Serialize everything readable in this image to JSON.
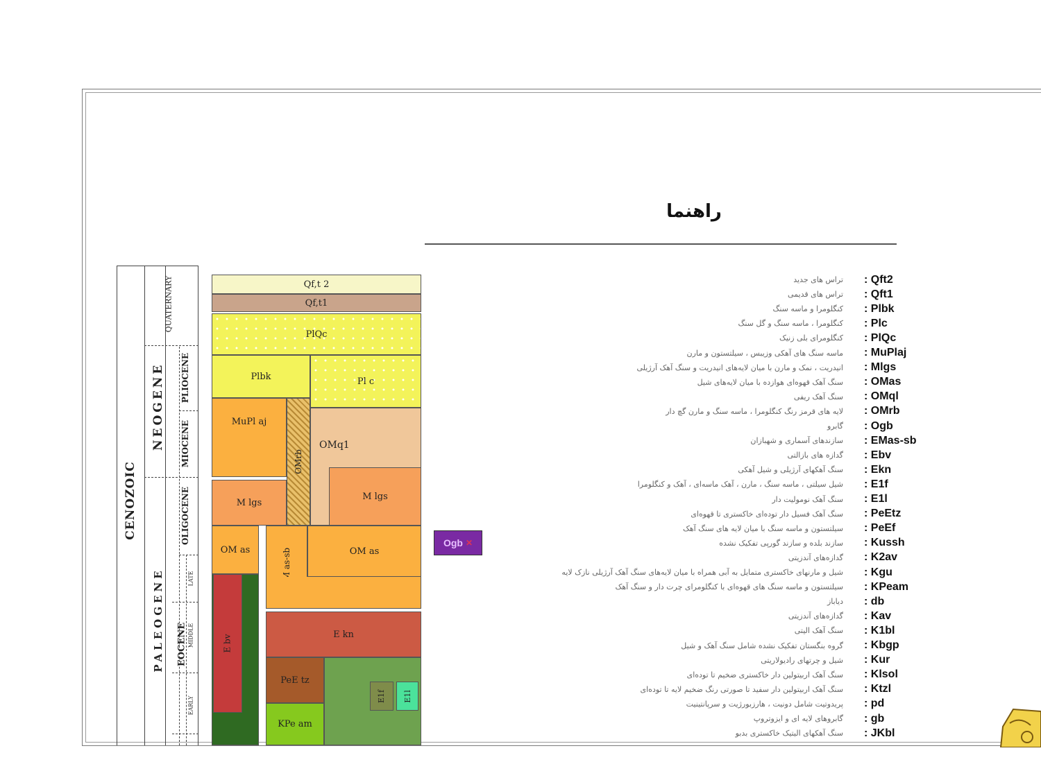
{
  "legend": {
    "title": "راهنما",
    "items": [
      {
        "code": ": Qft2",
        "desc": "تراس های جدید"
      },
      {
        "code": ": Qft1",
        "desc": "تراس های قدیمی"
      },
      {
        "code": ": Plbk",
        "desc": "کنگلومرا و ماسه سنگ"
      },
      {
        "code": ": Plc",
        "desc": "کنگلومرا ، ماسه سنگ و گل سنگ"
      },
      {
        "code": ": PlQc",
        "desc": "کنگلومرای بلی زنیک"
      },
      {
        "code": ": MuPlaj",
        "desc": "ماسه سنگ های آهکی وزیبس ، سیلتستون و مارن"
      },
      {
        "code": ": Mlgs",
        "desc": "انیدریت ، نمک و مارن با میان لایه‌های انیدریت و سنگ آهک آرژیلی"
      },
      {
        "code": ": OMas",
        "desc": "سنگ آهک قهوه‌ای هوازده با میان لایه‌های شیل"
      },
      {
        "code": ": OMql",
        "desc": "سنگ آهک ریفی"
      },
      {
        "code": ": OMrb",
        "desc": "لایه های قرمز رنگ کنگلومرا ، ماسه سنگ و مارن گچ دار"
      },
      {
        "code": ": Ogb",
        "desc": "گابرو"
      },
      {
        "code": ": EMas-sb",
        "desc": "سازندهای آسماری و شهبازان"
      },
      {
        "code": ": Ebv",
        "desc": "گدازه های بازالتی"
      },
      {
        "code": ": Ekn",
        "desc": "سنگ آهکهای آرژیلی و شیل آهکی"
      },
      {
        "code": ": E1f",
        "desc": "شیل سیلتی ، ماسه سنگ ، مارن ، آهک ماسه‌ای ، آهک و کنگلومرا"
      },
      {
        "code": ": E1l",
        "desc": "سنگ آهک نومولیت دار"
      },
      {
        "code": ": PeEtz",
        "desc": "سنگ آهک فسیل دار توده‌ای خاکستری تا قهوه‌ای"
      },
      {
        "code": ": PeEf",
        "desc": "سیلتستون و ماسه سنگ با میان لایه های سنگ آهک"
      },
      {
        "code": ": Kussh",
        "desc": "سازند بلده و سازند گورپی تفکیک نشده"
      },
      {
        "code": ": K2av",
        "desc": "گدازه‌های آندزیتی"
      },
      {
        "code": ": Kgu",
        "desc": "شیل و مارنهای خاکستری متمایل به آبی همراه با میان لایه‌های سنگ آهک آرژیلی نازک لایه"
      },
      {
        "code": ": KPeam",
        "desc": "سیلتستون و ماسه سنگ های قهوه‌ای با کنگلومرای چرت دار و سنگ آهک"
      },
      {
        "code": ": db",
        "desc": "دیاباز"
      },
      {
        "code": ": Kav",
        "desc": "گدازه‌های آندزیتی"
      },
      {
        "code": ": K1bl",
        "desc": "سنگ آهک الیتی"
      },
      {
        "code": ": Kbgp",
        "desc": "گروه بنگستان تفکیک نشده شامل سنگ آهک و شیل"
      },
      {
        "code": ": Kur",
        "desc": "شیل و چرتهای رادیولاریتی"
      },
      {
        "code": ": Klsol",
        "desc": "سنگ آهک اربیتولین دار خاکستری ضخیم تا توده‌ای"
      },
      {
        "code": ": Ktzl",
        "desc": "سنگ آهک اربیتولین دار سفید تا صورتی رنگ ضخیم لایه تا توده‌ای"
      },
      {
        "code": ": pd",
        "desc": "پریدوتیت شامل دونیت ، هارزبورژیت و سرپانتینیت"
      },
      {
        "code": ": gb",
        "desc": "گابروهای لایه ای و ایزوتروپ"
      },
      {
        "code": ": JKbl",
        "desc": "سنگ آهکهای الیتیک خاکستری بدبو"
      }
    ],
    "swatch_label": "Ogb"
  },
  "stratigraphy": {
    "era": "CENOZOIC",
    "periods": [
      "QUATERNARY",
      "NEOGENE",
      "PALEOGENE"
    ],
    "epochs": [
      "PLIOCENE",
      "MIOCENE",
      "OLIGOCENE",
      "EOCENE"
    ],
    "subepochs": [
      "LATE",
      "MIDDLE",
      "EARLY"
    ],
    "units": {
      "qft2": "Qf,t 2",
      "qft1": "Qf,t1",
      "plqc": "PlQc",
      "plbk": "Plbk",
      "plc": "Pl c",
      "muplaj": "MuPl aj",
      "omrb": "OMrb",
      "omq1": "OMq1",
      "mlgs_left": "M lgs",
      "mlgs_right": "M lgs",
      "omas_left": "OM as",
      "emas": "EM as-sb",
      "omas_right": "OM as",
      "ebv": "E bv",
      "ekn": "E kn",
      "peetz": "PeE tz",
      "e1f": "E1f",
      "e1l": "E1l",
      "kpeam": "KPe am"
    }
  },
  "colors": {
    "qft2": "#f7f6c8",
    "qft1": "#c9a48b",
    "yellow": "#f3f35a",
    "orange": "#fbb040",
    "tan": "#f0c79a",
    "salmon": "#f6a05a",
    "purple": "#7a2aa3",
    "darkgreen": "#2f6a22",
    "red": "#cc5a44",
    "brown": "#a55a2a",
    "green": "#6ea24f",
    "lime": "#86c91e",
    "aqua": "#4be29b",
    "olive": "#7f8c4a"
  }
}
